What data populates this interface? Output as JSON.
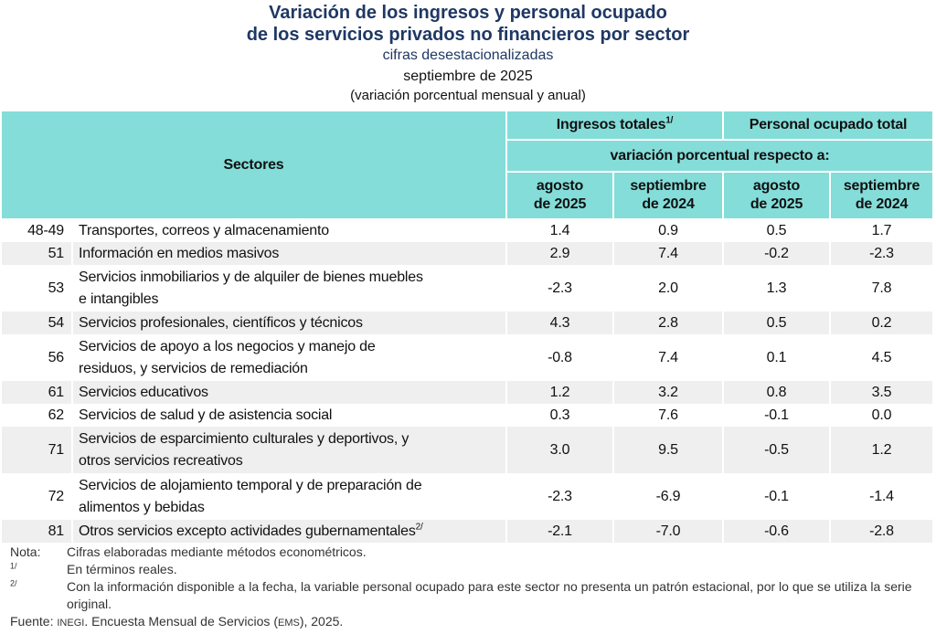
{
  "title": {
    "line1": "Variación de los ingresos y personal ocupado",
    "line2": "de los servicios privados no financieros por sector",
    "subtitle": "cifras desestacionalizadas",
    "period": "septiembre de 2025",
    "unit": "(variación porcentual mensual y anual)"
  },
  "header": {
    "sectores": "Sectores",
    "ingresos": "Ingresos totales",
    "ingresos_note": "1/",
    "personal": "Personal ocupado total",
    "variacion": "variación porcentual respecto a:",
    "cols": [
      {
        "l1": "agosto",
        "l2": "de 2025"
      },
      {
        "l1": "septiembre",
        "l2": "de 2024"
      },
      {
        "l1": "agosto",
        "l2": "de 2025"
      },
      {
        "l1": "septiembre",
        "l2": "de 2024"
      }
    ]
  },
  "rows": [
    {
      "code": "48-49",
      "l1": "Transportes, correos y almacenamiento",
      "l2": "",
      "v": [
        "1.4",
        "0.9",
        "0.5",
        "1.7"
      ]
    },
    {
      "code": "51",
      "l1": "Información en medios masivos",
      "l2": "",
      "v": [
        "2.9",
        "7.4",
        "-0.2",
        "-2.3"
      ]
    },
    {
      "code": "53",
      "l1": "Servicios inmobiliarios y de alquiler de bienes muebles",
      "l2": "e intangibles",
      "v": [
        "-2.3",
        "2.0",
        "1.3",
        "7.8"
      ]
    },
    {
      "code": "54",
      "l1": "Servicios profesionales, científicos y técnicos",
      "l2": "",
      "v": [
        "4.3",
        "2.8",
        "0.5",
        "0.2"
      ]
    },
    {
      "code": "56",
      "l1": "Servicios de apoyo a los negocios y manejo de",
      "l2": "residuos, y servicios de remediación",
      "v": [
        "-0.8",
        "7.4",
        "0.1",
        "4.5"
      ]
    },
    {
      "code": "61",
      "l1": "Servicios educativos",
      "l2": "",
      "v": [
        "1.2",
        "3.2",
        "0.8",
        "3.5"
      ]
    },
    {
      "code": "62",
      "l1": "Servicios de salud y de asistencia social",
      "l2": "",
      "v": [
        "0.3",
        "7.6",
        "-0.1",
        "0.0"
      ]
    },
    {
      "code": "71",
      "l1": "Servicios de esparcimiento culturales y deportivos, y",
      "l2": "otros servicios recreativos",
      "v": [
        "3.0",
        "9.5",
        "-0.5",
        "1.2"
      ]
    },
    {
      "code": "72",
      "l1": "Servicios de alojamiento temporal y de preparación de",
      "l2": "alimentos y bebidas",
      "v": [
        "-2.3",
        "-6.9",
        "-0.1",
        "-1.4"
      ]
    },
    {
      "code": "81",
      "l1": "Otros servicios excepto actividades gubernamentales",
      "l2": "",
      "note": "2/",
      "v": [
        "-2.1",
        "-7.0",
        "-0.6",
        "-2.8"
      ]
    }
  ],
  "notes": {
    "nota_label": "Nota:",
    "nota": "Cifras elaboradas mediante métodos econométricos.",
    "n1_label": "1/",
    "n1": "En términos reales.",
    "n2_label": "2/",
    "n2": "Con la información disponible a la fecha, la variable personal ocupado para este sector no presenta un patrón estacional, por lo que se utiliza la serie original.",
    "fuente_label": "Fuente:",
    "fuente_org": "INEGI",
    "fuente_mid": ". Encuesta Mensual de Servicios (",
    "fuente_abbr": "EMS",
    "fuente_end": "), 2025."
  },
  "colors": {
    "header_bg": "#84ddd9",
    "title": "#1f3864",
    "alt_row": "#efefef"
  }
}
